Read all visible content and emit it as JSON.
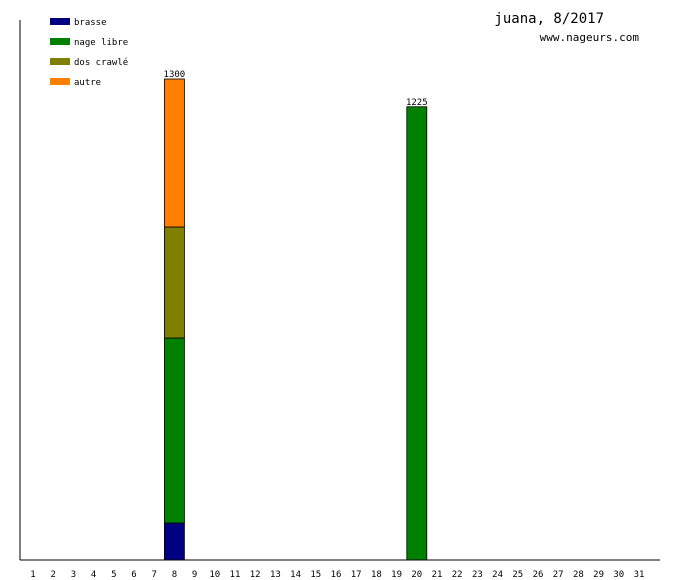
{
  "chart_data": {
    "type": "bar",
    "stacked": true,
    "title": "juana, 8/2017",
    "subtitle": "www.nageurs.com",
    "categories": [
      "1",
      "2",
      "3",
      "4",
      "5",
      "6",
      "7",
      "8",
      "9",
      "10",
      "11",
      "12",
      "13",
      "14",
      "15",
      "16",
      "17",
      "18",
      "19",
      "20",
      "21",
      "22",
      "23",
      "24",
      "25",
      "26",
      "27",
      "28",
      "29",
      "30",
      "31"
    ],
    "series": [
      {
        "name": "brasse",
        "color": "#000080",
        "values": [
          0,
          0,
          0,
          0,
          0,
          0,
          0,
          100,
          0,
          0,
          0,
          0,
          0,
          0,
          0,
          0,
          0,
          0,
          0,
          0,
          0,
          0,
          0,
          0,
          0,
          0,
          0,
          0,
          0,
          0,
          0
        ]
      },
      {
        "name": "nage libre",
        "color": "#008000",
        "values": [
          0,
          0,
          0,
          0,
          0,
          0,
          0,
          500,
          0,
          0,
          0,
          0,
          0,
          0,
          0,
          0,
          0,
          0,
          0,
          1225,
          0,
          0,
          0,
          0,
          0,
          0,
          0,
          0,
          0,
          0,
          0
        ]
      },
      {
        "name": "dos crawlé",
        "color": "#808000",
        "values": [
          0,
          0,
          0,
          0,
          0,
          0,
          0,
          300,
          0,
          0,
          0,
          0,
          0,
          0,
          0,
          0,
          0,
          0,
          0,
          0,
          0,
          0,
          0,
          0,
          0,
          0,
          0,
          0,
          0,
          0,
          0
        ]
      },
      {
        "name": "autre",
        "color": "#ff8000",
        "values": [
          0,
          0,
          0,
          0,
          0,
          0,
          0,
          400,
          0,
          0,
          0,
          0,
          0,
          0,
          0,
          0,
          0,
          0,
          0,
          0,
          0,
          0,
          0,
          0,
          0,
          0,
          0,
          0,
          0,
          0,
          0
        ]
      }
    ],
    "totals": {
      "8": "1300",
      "20": "1225"
    },
    "ylim": [
      0,
      1300
    ],
    "grid": false,
    "legend_position": "top-left",
    "xlabel": "",
    "ylabel": ""
  }
}
